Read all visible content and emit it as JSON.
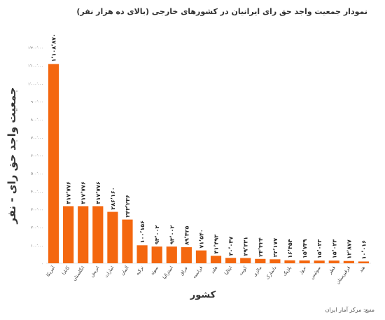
{
  "chart_data": {
    "type": "bar",
    "title": "نمودار جمعیت واجد حق رای ایرانیان در کشورهای خارجی (بالای ده هزار نفر)",
    "ylabel": "جمعیت واجد حق رای - نفر",
    "xlabel": "کشور",
    "source": "منبع: مرکز آمار ایران",
    "categories": [
      "آمریکا",
      "کانادا",
      "انگلستان",
      "اتریش",
      "امارات",
      "آلمان",
      "ترکیه",
      "سوئد",
      "استرالیا",
      "عراق",
      "فرانسه",
      "هلند",
      "ایتالیا",
      "کویت",
      "مالزی",
      "دانمارک",
      "بلژیک",
      "نروژ",
      "سوئیس",
      "قطر",
      "قرقیزستان",
      "هند"
    ],
    "values": [
      1108870,
      317776,
      317776,
      317776,
      286160,
      243236,
      100156,
      93002,
      93002,
      89425,
      71540,
      41493,
      30047,
      29331,
      24324,
      22177,
      16454,
      15739,
      15023,
      15023,
      12877,
      10016
    ],
    "value_labels": [
      "۱٬۱۰۸٬۸۷۰",
      "۳۱۷٬۷۷۶",
      "۳۱۷٬۷۷۶",
      "۳۱۷٬۷۷۶",
      "۲۸۶٬۱۶۰",
      "۲۴۳٬۲۳۶",
      "۱۰۰٬۱۵۶",
      "۹۳٬۰۰۲",
      "۹۳٬۰۰۲",
      "۸۹٬۴۲۵",
      "۷۱٬۵۴۰",
      "۴۱٬۴۹۳",
      "۳۰٬۰۴۷",
      "۲۹٬۳۳۱",
      "۲۴٬۳۲۴",
      "۲۲٬۱۷۷",
      "۱۶٬۴۵۴",
      "۱۵٬۷۳۹",
      "۱۵٬۰۲۳",
      "۱۵٬۰۲۳",
      "۱۲٬۸۷۷",
      "۱۰٬۰۱۶"
    ],
    "color": "#f4670f",
    "ylim": [
      0,
      1200000
    ],
    "yticks": [
      {
        "value": 0,
        "label": "۰"
      },
      {
        "value": 100000,
        "label": "۱۰۰٬۰۰۰"
      },
      {
        "value": 200000,
        "label": "۲۰۰٬۰۰۰"
      },
      {
        "value": 300000,
        "label": "۳۰۰٬۰۰۰"
      },
      {
        "value": 400000,
        "label": "۴۰۰٬۰۰۰"
      },
      {
        "value": 500000,
        "label": "۵۰۰٬۰۰۰"
      },
      {
        "value": 600000,
        "label": "۶۰۰٬۰۰۰"
      },
      {
        "value": 700000,
        "label": "۷۰۰٬۰۰۰"
      },
      {
        "value": 800000,
        "label": "۸۰۰٬۰۰۰"
      },
      {
        "value": 900000,
        "label": "۹۰۰٬۰۰۰"
      },
      {
        "value": 1000000,
        "label": "۱٬۰۰۰٬۰۰۰"
      },
      {
        "value": 1100000,
        "label": "۱٬۱۰۰٬۰۰۰"
      },
      {
        "value": 1200000,
        "label": "۱٬۲۰۰٬۰۰۰"
      }
    ],
    "grid": false
  }
}
